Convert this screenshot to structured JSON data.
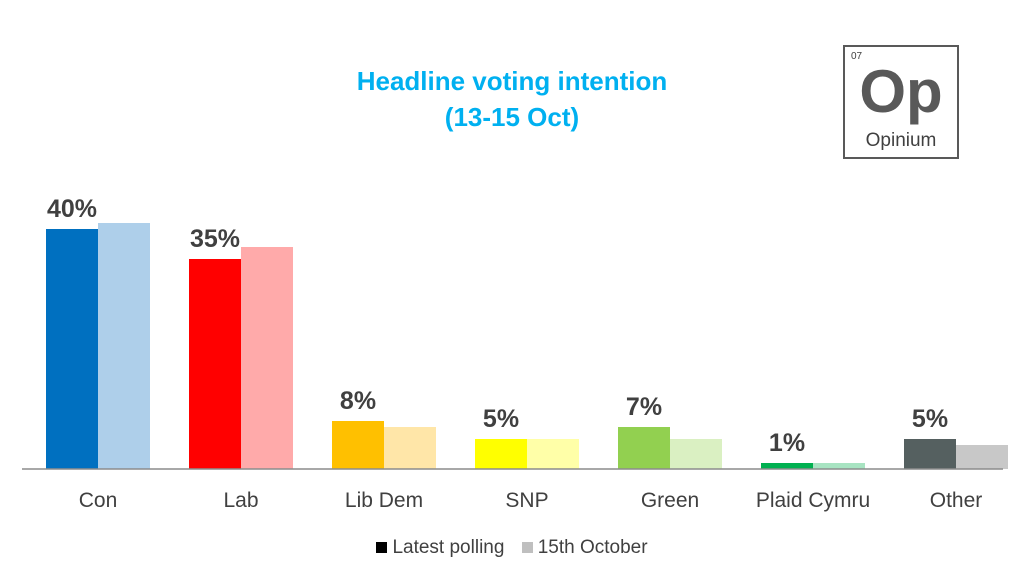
{
  "chart_data": {
    "type": "bar",
    "title": "Headline voting intention",
    "subtitle": "(13-15 Oct)",
    "categories": [
      "Con",
      "Lab",
      "Lib Dem",
      "SNP",
      "Green",
      "Plaid Cymru",
      "Other"
    ],
    "series": [
      {
        "name": "Latest polling",
        "values": [
          40,
          35,
          8,
          5,
          7,
          1,
          5
        ]
      },
      {
        "name": "15th October",
        "values": [
          41,
          37,
          7,
          5,
          5,
          1,
          4
        ]
      }
    ],
    "data_labels": [
      "40%",
      "35%",
      "8%",
      "5%",
      "7%",
      "1%",
      "5%"
    ],
    "colors_latest": [
      "#0070C0",
      "#FF0000",
      "#FFC000",
      "#FFFF00",
      "#92D050",
      "#00B050",
      "#556060"
    ],
    "colors_previous": [
      "#AECFEA",
      "#FFAAAA",
      "#FFE6A8",
      "#FFFFA8",
      "#DAF0C2",
      "#A8E4C2",
      "#C8C8C8"
    ],
    "legend_swatch_colors": [
      "#000000",
      "#BFBFBF"
    ],
    "title_color": "#00B0F0",
    "ylim": [
      0,
      45
    ],
    "legend_position": "bottom",
    "grid": false
  },
  "logo": {
    "number": "07",
    "symbol": "Op",
    "name": "Opinium"
  }
}
